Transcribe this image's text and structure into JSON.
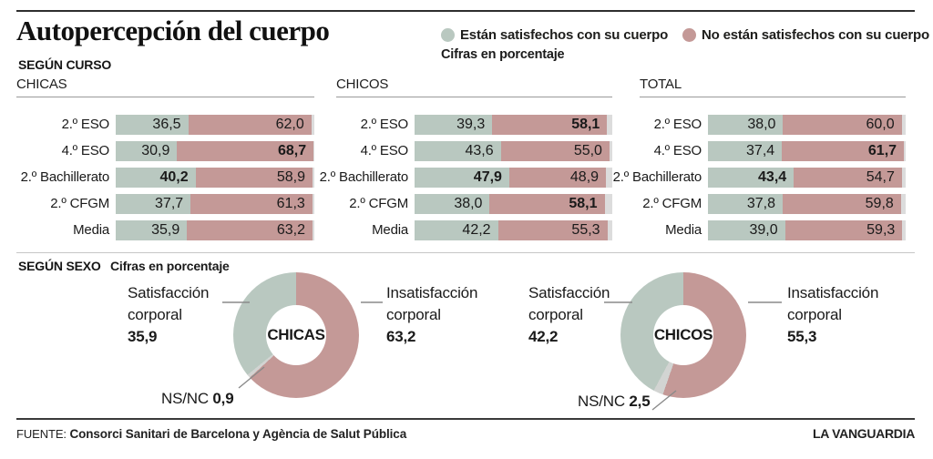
{
  "title": "Autopercepción del cuerpo",
  "legend": {
    "satisfied": "Están satisfechos con su cuerpo",
    "unsatisfied": "No están satisfechos con su cuerpo"
  },
  "colors": {
    "satisfied": "#b9c8c0",
    "unsatisfied": "#c49997",
    "nsnc": "#d2d4d2",
    "bar_rest": "#dcdcdc"
  },
  "curso": {
    "heading": "SEGÚN CURSO",
    "units": "Cifras en porcentaje"
  },
  "sexo": {
    "heading": "SEGÚN SEXO",
    "units": "Cifras en porcentaje"
  },
  "footer": {
    "source_label": "FUENTE:",
    "source_text": "Consorci Sanitari de Barcelona y Agència de Salut Pública",
    "brand": "LA VANGUARDIA"
  },
  "chart_data": [
    {
      "type": "bar",
      "group": "CHICAS",
      "categories": [
        "2.º ESO",
        "4.º ESO",
        "2.º Bachillerato",
        "2.º CFGM",
        "Media"
      ],
      "series": [
        {
          "name": "Están satisfechos con su cuerpo",
          "values": [
            36.5,
            30.9,
            40.2,
            37.7,
            35.9
          ],
          "bold": [
            false,
            false,
            true,
            false,
            false
          ]
        },
        {
          "name": "No están satisfechos con su cuerpo",
          "values": [
            62.0,
            68.7,
            58.9,
            61.3,
            63.2
          ],
          "bold": [
            false,
            true,
            false,
            false,
            false
          ]
        }
      ],
      "xlim": [
        0,
        100
      ],
      "units": "percent",
      "stacked": true
    },
    {
      "type": "bar",
      "group": "CHICOS",
      "categories": [
        "2.º ESO",
        "4.º ESO",
        "2.º Bachillerato",
        "2.º CFGM",
        "Media"
      ],
      "series": [
        {
          "name": "Están satisfechos con su cuerpo",
          "values": [
            39.3,
            43.6,
            47.9,
            38.0,
            42.2
          ],
          "bold": [
            false,
            false,
            true,
            false,
            false
          ]
        },
        {
          "name": "No están satisfechos con su cuerpo",
          "values": [
            58.1,
            55.0,
            48.9,
            58.1,
            55.3
          ],
          "bold": [
            true,
            false,
            false,
            true,
            false
          ]
        }
      ],
      "xlim": [
        0,
        100
      ],
      "units": "percent",
      "stacked": true
    },
    {
      "type": "bar",
      "group": "TOTAL",
      "categories": [
        "2.º ESO",
        "4.º ESO",
        "2.º Bachillerato",
        "2.º CFGM",
        "Media"
      ],
      "series": [
        {
          "name": "Están satisfechos con su cuerpo",
          "values": [
            38.0,
            37.4,
            43.4,
            37.8,
            39.0
          ],
          "bold": [
            false,
            false,
            true,
            false,
            false
          ]
        },
        {
          "name": "No están satisfechos con su cuerpo",
          "values": [
            60.0,
            61.7,
            54.7,
            59.8,
            59.3
          ],
          "bold": [
            false,
            true,
            false,
            false,
            false
          ]
        }
      ],
      "xlim": [
        0,
        100
      ],
      "units": "percent",
      "stacked": true
    },
    {
      "type": "pie",
      "group": "CHICAS",
      "labels": [
        "Satisfacción corporal",
        "Insatisfacción corporal",
        "NS/NC"
      ],
      "values": [
        35.9,
        63.2,
        0.9
      ],
      "units": "percent"
    },
    {
      "type": "pie",
      "group": "CHICOS",
      "labels": [
        "Satisfacción corporal",
        "Insatisfacción corporal",
        "NS/NC"
      ],
      "values": [
        42.2,
        55.3,
        2.5
      ],
      "units": "percent"
    }
  ]
}
